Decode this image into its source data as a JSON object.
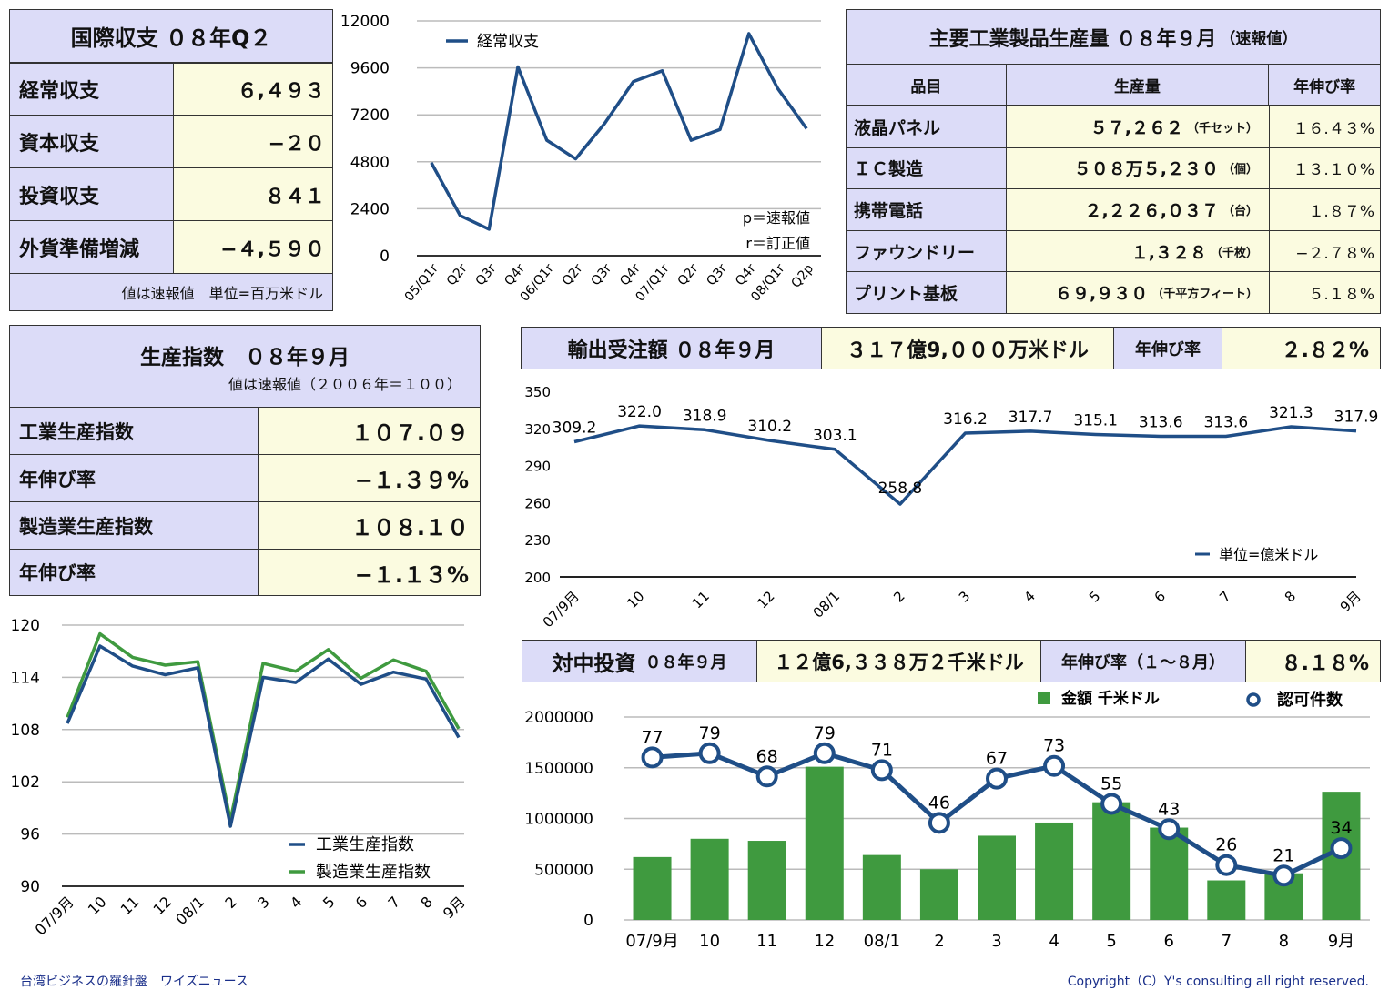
{
  "bop": {
    "title": "国際収支 ０８年Q２",
    "rows": [
      {
        "label": "経常収支",
        "value": "６,４９３"
      },
      {
        "label": "資本収支",
        "value": "−２０"
      },
      {
        "label": "投資収支",
        "value": "８４１"
      },
      {
        "label": "外貨準備増減",
        "value": "−４,５９０"
      }
    ],
    "note": "値は速報値　単位=百万米ドル"
  },
  "production_table": {
    "title": "主要工業製品生産量 ０８年９月",
    "title_suffix": "（速報値）",
    "headers": [
      "品目",
      "生産量",
      "年伸び率"
    ],
    "rows": [
      {
        "item": "液晶パネル",
        "volume": "５７,２６２",
        "unit": "（千セット）",
        "growth": "１６.４３%"
      },
      {
        "item": "ＩＣ製造",
        "volume": "５０８万５,２３０",
        "unit": "（個）",
        "growth": "１３.１０%"
      },
      {
        "item": "携帯電話",
        "volume": "２,２２６,０３７",
        "unit": "（台）",
        "growth": "１.８７%"
      },
      {
        "item": "ファウンドリー",
        "volume": "１,３２８",
        "unit": "（千枚）",
        "growth": "−２.７８%"
      },
      {
        "item": "プリント基板",
        "volume": "６９,９３０",
        "unit": "（千平方フィート）",
        "growth": "５.１８%"
      }
    ]
  },
  "index_table": {
    "title": "生産指数　０８年９月",
    "subtitle": "値は速報値（２００６年＝１００）",
    "rows": [
      {
        "label": "工業生産指数",
        "value": "１０７.０９"
      },
      {
        "label": "年伸び率",
        "value": "−１.３９%"
      },
      {
        "label": "製造業生産指数",
        "value": "１０８.１０"
      },
      {
        "label": "年伸び率",
        "value": "−１.１３%"
      }
    ]
  },
  "export_header": {
    "title": "輸出受注額 ０８年９月",
    "amount": "３１７億9,０００万米ドル",
    "growth_label": "年伸び率",
    "growth": "２.８２%"
  },
  "china_header": {
    "title": "対中投資",
    "title_small": "０８年９月",
    "amount": "１２億6,３３８万２千米ドル",
    "growth_label": "年伸び率（１〜８月）",
    "growth": "８.１８%"
  },
  "footer": {
    "left": "台湾ビジネスの羅針盤　ワイズニュース",
    "right": "Copyright（C）Y's consulting all right reserved."
  },
  "colors": {
    "blue": "#1f4e87",
    "green": "#3f9a3f",
    "purple_bg": "#dcdcf8",
    "yellow_bg": "#fbfbe0"
  },
  "chart_data": [
    {
      "type": "line",
      "id": "current_account",
      "x": [
        "05/Q1r",
        "Q2r",
        "Q3r",
        "Q4r",
        "06/Q1r",
        "Q2r",
        "Q3r",
        "Q4r",
        "07/Q1r",
        "Q2r",
        "Q3r",
        "Q4r",
        "08/Q1r",
        "Q2p"
      ],
      "series": [
        {
          "name": "経常収支",
          "values": [
            4750,
            2050,
            1350,
            9650,
            5900,
            4950,
            6750,
            8900,
            9450,
            5900,
            6450,
            11350,
            8550,
            6493
          ]
        }
      ],
      "ylim": [
        0,
        12000
      ],
      "yticks": [
        "12000",
        "9600",
        "7200",
        "4800",
        "2400",
        "0"
      ],
      "annotations": [
        "p＝速報値",
        "r＝訂正値"
      ],
      "legend": "top-left"
    },
    {
      "type": "line",
      "id": "export_orders",
      "x": [
        "07/9月",
        "10",
        "11",
        "12",
        "08/1",
        "2",
        "3",
        "4",
        "5",
        "6",
        "7",
        "8",
        "9月"
      ],
      "series": [
        {
          "name": "単位=億米ドル",
          "values": [
            309.2,
            322.0,
            318.9,
            310.2,
            303.1,
            258.8,
            316.2,
            317.7,
            315.1,
            313.6,
            313.6,
            321.3,
            317.9
          ]
        }
      ],
      "data_labels": [
        "309.2",
        "322.0",
        "318.9",
        "310.2",
        "303.1",
        "258.8",
        "316.2",
        "317.7",
        "315.1",
        "313.6",
        "313.6",
        "321.3",
        "317.9"
      ],
      "ylim": [
        200,
        350
      ],
      "yticks": [
        "350",
        "320",
        "290",
        "260",
        "230",
        "200"
      ],
      "legend": "bottom-right"
    },
    {
      "type": "line",
      "id": "production_index",
      "x": [
        "07/9月",
        "10",
        "11",
        "12",
        "08/1",
        "2",
        "3",
        "4",
        "5",
        "6",
        "7",
        "8",
        "9月"
      ],
      "series": [
        {
          "name": "工業生産指数",
          "values": [
            108.7,
            117.6,
            115.3,
            114.3,
            115.1,
            96.9,
            114.0,
            113.4,
            116.1,
            113.2,
            114.6,
            113.8,
            107.09
          ]
        },
        {
          "name": "製造業生産指数",
          "values": [
            109.4,
            119.0,
            116.3,
            115.4,
            115.8,
            97.6,
            115.6,
            114.7,
            117.2,
            113.9,
            116.0,
            114.7,
            108.1
          ]
        }
      ],
      "ylim": [
        90,
        120
      ],
      "yticks": [
        "120",
        "114",
        "108",
        "102",
        "96",
        "90"
      ],
      "legend": "bottom-right"
    },
    {
      "type": "bar",
      "id": "china_investment",
      "categories": [
        "07/9月",
        "10",
        "11",
        "12",
        "08/1",
        "2",
        "3",
        "4",
        "5",
        "6",
        "7",
        "8",
        "9月"
      ],
      "series": [
        {
          "name": "金額 千米ドル",
          "values": [
            620000,
            800000,
            780000,
            1510000,
            640000,
            500000,
            830000,
            960000,
            1160000,
            910000,
            390000,
            460000,
            1263382
          ]
        },
        {
          "name": "認可件数",
          "values": [
            77,
            79,
            68,
            79,
            71,
            46,
            67,
            73,
            55,
            43,
            26,
            21,
            34
          ]
        }
      ],
      "count_labels": [
        "77",
        "79",
        "68",
        "79",
        "71",
        "46",
        "67",
        "73",
        "55",
        "43",
        "26",
        "21",
        "34"
      ],
      "ylim": [
        0,
        2000000
      ],
      "yticks": [
        "2000000",
        "1500000",
        "1000000",
        "500000",
        "0"
      ],
      "legend": "top-right"
    }
  ]
}
